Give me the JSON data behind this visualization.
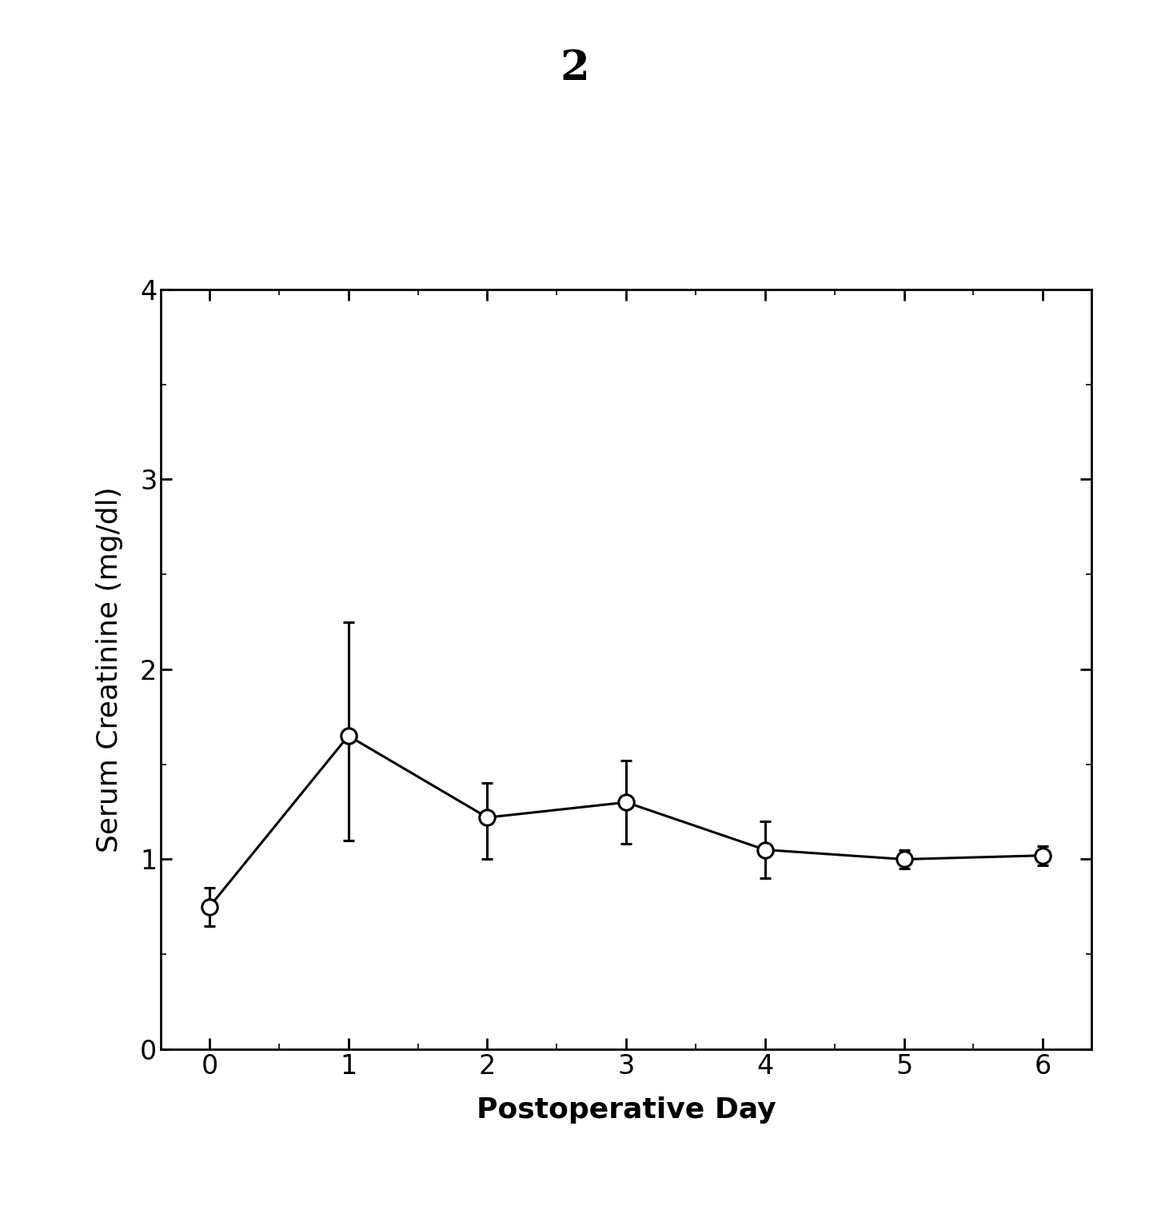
{
  "title": "2",
  "xlabel": "Postoperative Day",
  "ylabel": "Serum Creatinine (mg/dl)",
  "x": [
    0,
    1,
    2,
    3,
    4,
    5,
    6
  ],
  "y": [
    0.75,
    1.65,
    1.22,
    1.3,
    1.05,
    1.0,
    1.02
  ],
  "yerr_upper": [
    0.1,
    0.6,
    0.18,
    0.22,
    0.15,
    0.05,
    0.05
  ],
  "yerr_lower": [
    0.1,
    0.55,
    0.22,
    0.22,
    0.15,
    0.05,
    0.05
  ],
  "xlim": [
    -0.35,
    6.35
  ],
  "ylim": [
    0,
    4.0
  ],
  "yticks": [
    0,
    1,
    2,
    3,
    4
  ],
  "xticks": [
    0,
    1,
    2,
    3,
    4,
    5,
    6
  ],
  "line_color": "#000000",
  "marker_facecolor": "#ffffff",
  "marker_edgecolor": "#000000",
  "background_color": "#ffffff",
  "title_fontsize": 38,
  "label_fontsize": 26,
  "tick_fontsize": 24,
  "marker_size": 14,
  "linewidth": 2.2,
  "capsize": 5
}
